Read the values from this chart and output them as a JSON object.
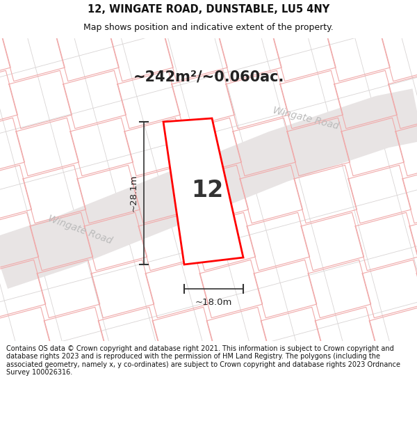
{
  "title": "12, WINGATE ROAD, DUNSTABLE, LU5 4NY",
  "subtitle": "Map shows position and indicative extent of the property.",
  "area_label": "~242m²/~0.060ac.",
  "property_number": "12",
  "dim_width": "~18.0m",
  "dim_height": "~28.1m",
  "road_label_left": "Wingate Road",
  "road_label_diag": "Wingate Road",
  "footer": "Contains OS data © Crown copyright and database right 2021. This information is subject to Crown copyright and database rights 2023 and is reproduced with the permission of HM Land Registry. The polygons (including the associated geometry, namely x, y co-ordinates) are subject to Crown copyright and database rights 2023 Ordnance Survey 100026316.",
  "fig_width": 6.0,
  "fig_height": 6.25,
  "title_fontsize": 10.5,
  "subtitle_fontsize": 9.0,
  "area_fontsize": 16,
  "prop_num_fontsize": 24,
  "footer_fontsize": 7.0
}
